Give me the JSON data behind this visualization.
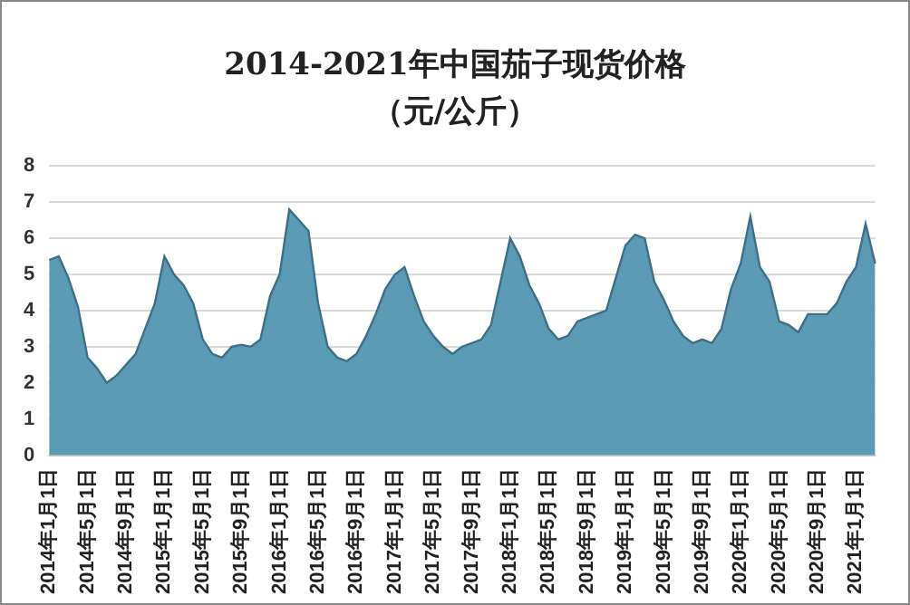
{
  "chart_data": {
    "type": "area",
    "title": "2014-2021年中国茄子现货价格",
    "subtitle": "（元/公斤）",
    "categories": [
      "2014年1月1日",
      null,
      null,
      null,
      "2014年5月1日",
      null,
      null,
      null,
      "2014年9月1日",
      null,
      null,
      null,
      "2015年1月1日",
      null,
      null,
      null,
      "2015年5月1日",
      null,
      null,
      null,
      "2015年9月1日",
      null,
      null,
      null,
      "2016年1月1日",
      null,
      null,
      null,
      "2016年5月1日",
      null,
      null,
      null,
      "2016年9月1日",
      null,
      null,
      null,
      "2017年1月1日",
      null,
      null,
      null,
      "2017年5月1日",
      null,
      null,
      null,
      "2017年9月1日",
      null,
      null,
      null,
      "2018年1月1日",
      null,
      null,
      null,
      "2018年5月1日",
      null,
      null,
      null,
      "2018年9月1日",
      null,
      null,
      null,
      "2019年1月1日",
      null,
      null,
      null,
      "2019年5月1日",
      null,
      null,
      null,
      "2019年9月1日",
      null,
      null,
      null,
      "2020年1月1日",
      null,
      null,
      null,
      "2020年5月1日",
      null,
      null,
      null,
      "2020年9月1日",
      null,
      null,
      null,
      "2021年1月1日",
      null,
      null
    ],
    "series": [
      {
        "color": "#5b9ab5",
        "values": [
          5.4,
          5.5,
          4.9,
          4.1,
          2.7,
          2.4,
          2.0,
          2.2,
          2.5,
          2.8,
          3.5,
          4.2,
          5.5,
          5.0,
          4.7,
          4.2,
          3.2,
          2.8,
          2.7,
          3.0,
          3.05,
          3.0,
          3.2,
          4.4,
          5.0,
          6.8,
          6.5,
          6.2,
          4.2,
          3.0,
          2.7,
          2.6,
          2.8,
          3.3,
          3.9,
          4.6,
          5.0,
          5.2,
          4.4,
          3.7,
          3.3,
          3.0,
          2.8,
          3.0,
          3.1,
          3.2,
          3.6,
          4.8,
          6.0,
          5.5,
          4.7,
          4.2,
          3.5,
          3.2,
          3.3,
          3.7,
          3.8,
          3.9,
          4.0,
          4.9,
          5.8,
          6.1,
          6.0,
          4.8,
          4.3,
          3.7,
          3.3,
          3.1,
          3.2,
          3.1,
          3.5,
          4.6,
          5.3,
          6.6,
          5.2,
          4.8,
          3.7,
          3.6,
          3.4,
          3.9,
          3.9,
          3.9,
          4.2,
          4.8,
          5.2,
          6.4,
          5.3
        ]
      }
    ],
    "ylim": [
      0,
      8
    ],
    "yticks": [
      0,
      1,
      2,
      3,
      4,
      5,
      6,
      7,
      8
    ],
    "grid": "y",
    "legend": false
  }
}
